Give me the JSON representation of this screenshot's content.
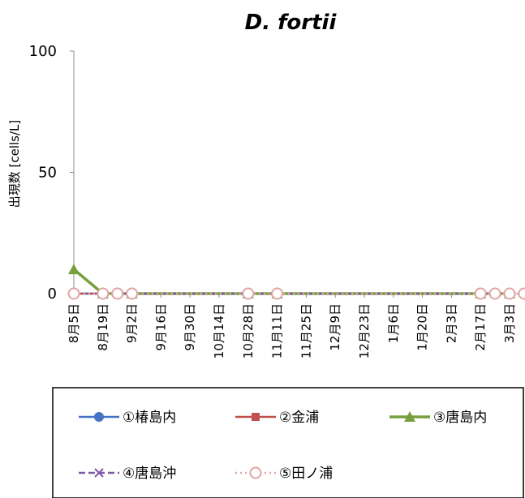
{
  "chart_data": {
    "type": "line",
    "title": "D. fortii",
    "ylabel": "出現数 [cells/L]",
    "xlabel": "",
    "ylim": [
      0,
      100
    ],
    "yticks": [
      0,
      50,
      100
    ],
    "grid": false,
    "legend_position": "bottom",
    "x_categories": [
      "8月5日",
      "8月19日",
      "9月2日",
      "9月16日",
      "9月30日",
      "10月14日",
      "10月28日",
      "11月11日",
      "11月25日",
      "12月9日",
      "12月23日",
      "1月6日",
      "1月20日",
      "2月3日",
      "2月17日",
      "3月3日"
    ],
    "series": [
      {
        "name": "①椿島内",
        "color": "#4472C4",
        "marker": "circle",
        "dash": "solid",
        "points": [
          [
            "8月5日",
            0
          ],
          [
            "8月19日",
            0
          ],
          [
            "9月2日",
            0
          ],
          [
            "10月28日",
            0
          ],
          [
            "11月11日",
            0
          ],
          [
            "2月17日",
            0
          ],
          [
            "3月3日",
            0
          ]
        ]
      },
      {
        "name": "②金浦",
        "color": "#C0504D",
        "marker": "square",
        "dash": "solid",
        "points": [
          [
            "8月5日",
            0
          ],
          [
            "8月19日",
            0
          ],
          [
            "9月2日",
            0
          ],
          [
            "10月28日",
            0
          ],
          [
            "11月11日",
            0
          ],
          [
            "2月17日",
            0
          ],
          [
            "3月3日",
            0
          ]
        ]
      },
      {
        "name": "③唐島内",
        "color": "#77A03E",
        "marker": "triangle",
        "dash": "solid",
        "points": [
          [
            "8月5日",
            10
          ],
          [
            "8月19日",
            0
          ],
          [
            "9月2日",
            0
          ],
          [
            "10月28日",
            0
          ],
          [
            "11月11日",
            0
          ],
          [
            "2月17日",
            0
          ],
          [
            "3月3日",
            0
          ]
        ]
      },
      {
        "name": "④唐島沖",
        "color": "#7E5AA6",
        "marker": "x",
        "dash": "dashed",
        "points": [
          [
            "8月5日",
            0
          ],
          [
            "8月19日",
            0
          ],
          [
            "9月2日",
            0
          ],
          [
            "10月28日",
            0
          ],
          [
            "11月11日",
            0
          ],
          [
            "2月17日",
            0
          ],
          [
            "3月3日",
            0
          ]
        ]
      },
      {
        "name": "⑤田ノ浦",
        "color": "#E0A4A4",
        "marker": "open-circle",
        "dash": "dotted",
        "points": [
          [
            "8月5日",
            0
          ],
          [
            "8月19日",
            0
          ],
          [
            "8月26日",
            0
          ],
          [
            "9月2日",
            0
          ],
          [
            "10月28日",
            0
          ],
          [
            "11月11日",
            0
          ],
          [
            "2月17日",
            0
          ],
          [
            "2月24日",
            0
          ],
          [
            "3月3日",
            0
          ],
          [
            "3月10日",
            0
          ]
        ]
      }
    ]
  }
}
